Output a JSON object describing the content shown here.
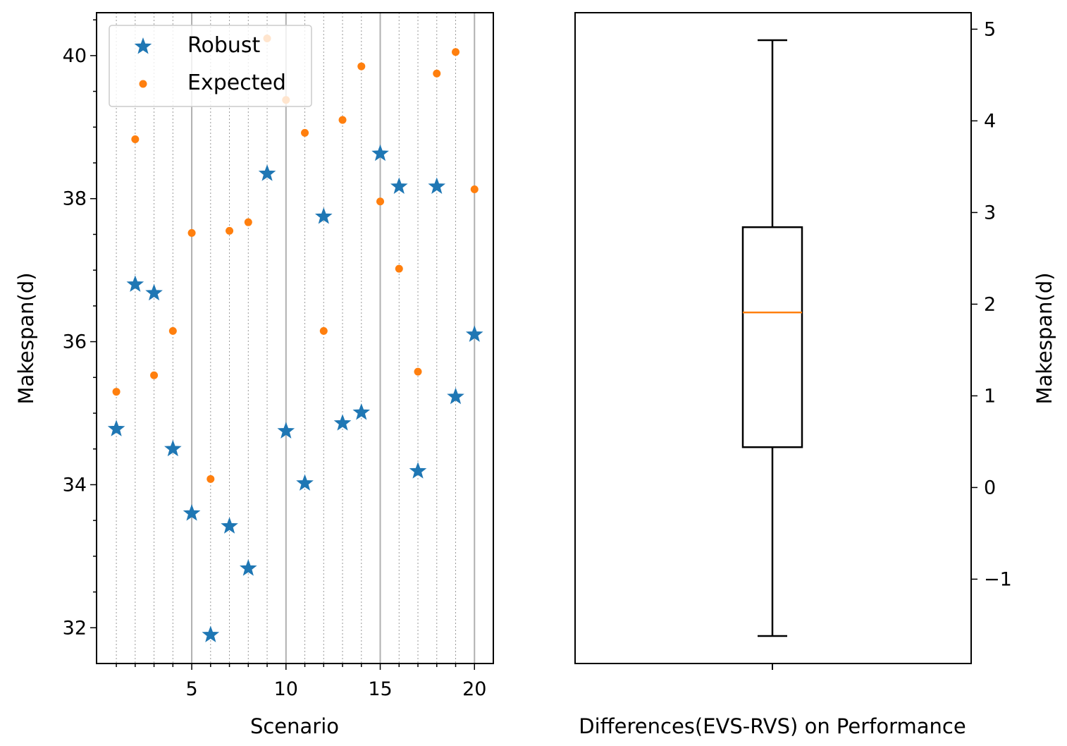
{
  "chart_data": [
    {
      "type": "scatter",
      "title": "",
      "xlabel": "Scenario",
      "ylabel": "Makespan(d)",
      "xlim": [
        -0.05,
        21.0
      ],
      "ylim": [
        31.5,
        40.6
      ],
      "xticks": [
        5,
        10,
        15,
        20
      ],
      "xtick_labels": [
        "5",
        "10",
        "15",
        "20"
      ],
      "yticks": [
        32,
        34,
        36,
        38,
        40
      ],
      "ytick_labels": [
        "32",
        "34",
        "36",
        "38",
        "40"
      ],
      "grid": "vertical lines at each scenario (major solid, minor dotted)",
      "legend_position": "upper-left",
      "x": [
        1,
        2,
        3,
        4,
        5,
        6,
        7,
        8,
        9,
        10,
        11,
        12,
        13,
        14,
        15,
        16,
        17,
        18,
        19,
        20
      ],
      "series": [
        {
          "name": "Robust",
          "marker": "star",
          "color": "#1f77b4",
          "values": [
            34.78,
            36.8,
            36.68,
            34.5,
            33.6,
            31.9,
            33.42,
            32.83,
            38.35,
            34.75,
            34.02,
            37.75,
            34.86,
            35.01,
            38.63,
            38.17,
            34.19,
            38.17,
            35.23,
            36.1
          ]
        },
        {
          "name": "Expected",
          "marker": "circle",
          "color": "#ff7f0e",
          "values": [
            35.3,
            38.83,
            35.53,
            36.15,
            37.52,
            34.08,
            37.55,
            37.67,
            40.24,
            39.38,
            38.92,
            36.15,
            39.1,
            39.85,
            37.96,
            37.02,
            35.58,
            39.75,
            40.05,
            38.13
          ]
        }
      ]
    },
    {
      "type": "box",
      "title": "",
      "xlabel": "Differences(EVS-RVS) on Performance",
      "ylabel": "Makespan(d)",
      "ylabel_position": "right",
      "ylim": [
        -1.92,
        5.18
      ],
      "yticks": [
        -1,
        0,
        1,
        2,
        3,
        4,
        5
      ],
      "ytick_labels": [
        "−1",
        "0",
        "1",
        "2",
        "3",
        "4",
        "5"
      ],
      "box": {
        "whisker_low": -1.62,
        "q1": 0.44,
        "median": 1.91,
        "q3": 2.84,
        "whisker_high": 4.88
      },
      "box_color": "#000000",
      "median_color": "#ff7f0e"
    }
  ]
}
